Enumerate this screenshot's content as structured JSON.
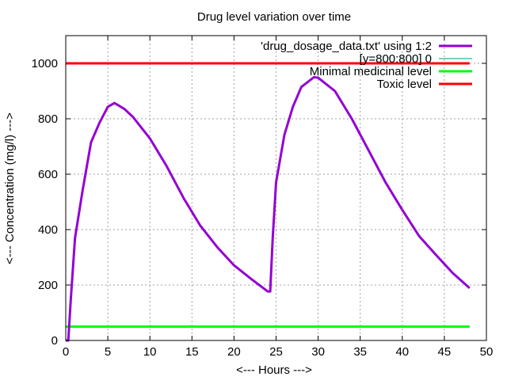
{
  "chart_data": {
    "type": "line",
    "title": "Drug level variation over time",
    "xlabel": "<--- Hours --->",
    "ylabel": "<--- Concentration (mg/l) --->",
    "xlim": [
      0,
      50
    ],
    "ylim": [
      0,
      1100
    ],
    "xticks": [
      0,
      5,
      10,
      15,
      20,
      25,
      30,
      35,
      40,
      45,
      50
    ],
    "yticks": [
      0,
      200,
      400,
      600,
      800,
      1000
    ],
    "grid": true,
    "legend_position": "top-right",
    "series": [
      {
        "name": "'drug_dosage_data.txt' using 1:2",
        "color": "#9400d3",
        "x": [
          0,
          0.3,
          0.6,
          1.1,
          2,
          3,
          4,
          5,
          5.8,
          7,
          8,
          10,
          12,
          14,
          16,
          18,
          20,
          22,
          24,
          24.3,
          24.6,
          25,
          26,
          27,
          28,
          29.5,
          30,
          32,
          34,
          36,
          38,
          40,
          42,
          44,
          46,
          48
        ],
        "y": [
          0,
          0,
          150,
          370,
          540,
          715,
          785,
          843,
          857,
          835,
          806,
          729,
          629,
          514,
          414,
          337,
          271,
          223,
          177,
          177,
          371,
          571,
          743,
          843,
          915,
          950,
          948,
          900,
          800,
          686,
          571,
          471,
          377,
          309,
          243,
          189
        ]
      },
      {
        "name": "[y=800:800] 0",
        "color": "#009e73",
        "x": [
          0,
          50
        ],
        "y": [
          0,
          0
        ]
      },
      {
        "name": "Minimal medicinal level",
        "color": "#00ff00",
        "x": [
          0,
          48
        ],
        "y": [
          50,
          50
        ]
      },
      {
        "name": "Toxic level",
        "color": "#ff0000",
        "x": [
          0,
          48
        ],
        "y": [
          1000,
          1000
        ]
      }
    ]
  }
}
